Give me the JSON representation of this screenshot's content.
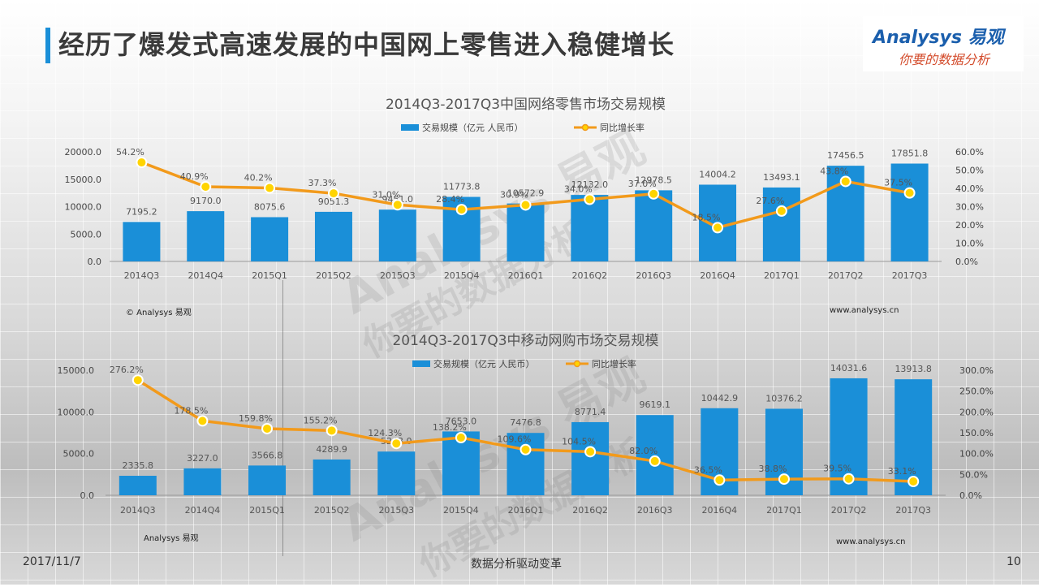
{
  "header": {
    "title": "经历了爆发式高速发展的中国网上零售进入稳健增长",
    "logo_brand": "Analysys 易观",
    "logo_tagline": "你要的数据分析"
  },
  "watermarks": [
    "Analysys 易观",
    "你要的数据分析"
  ],
  "footer": {
    "date": "2017/11/7",
    "center": "数据分析驱动变革",
    "page": "10"
  },
  "colors": {
    "bar": "#1a8fd8",
    "line": "#f29a1b",
    "marker_fill": "#ffd400",
    "accent": "#1a8fd8"
  },
  "chart_data": [
    {
      "type": "bar",
      "title": "2014Q3-2017Q3中国网络零售市场交易规模",
      "categories": [
        "2014Q3",
        "2014Q4",
        "2015Q1",
        "2015Q2",
        "2015Q3",
        "2015Q4",
        "2016Q1",
        "2016Q2",
        "2016Q3",
        "2016Q4",
        "2017Q1",
        "2017Q2",
        "2017Q3"
      ],
      "series": [
        {
          "name": "交易规模（亿元  人民币）",
          "kind": "bar",
          "axis": "left",
          "values": [
            7195.2,
            9170.0,
            8075.6,
            9051.3,
            9451.0,
            11773.8,
            10572.9,
            12132.0,
            12978.5,
            14004.2,
            13493.1,
            17456.5,
            17851.8
          ],
          "labels": [
            "7195.2",
            "9170.0",
            "8075.6",
            "9051.3",
            "9451.0",
            "11773.8",
            "10572.9",
            "12132.0",
            "12978.5",
            "14004.2",
            "13493.1",
            "17456.5",
            "17851.8"
          ]
        },
        {
          "name": "同比增长率",
          "kind": "line",
          "axis": "right",
          "values": [
            54.2,
            40.9,
            40.2,
            37.3,
            31.0,
            28.4,
            30.9,
            34.0,
            37.0,
            18.5,
            27.6,
            43.8,
            37.5
          ],
          "labels": [
            "54.2%",
            "40.9%",
            "40.2%",
            "37.3%",
            "31.0%",
            "28.4%",
            "30.9%",
            "34.0%",
            "37.0%",
            "18.5%",
            "27.6%",
            "43.8%",
            "37.5%"
          ]
        }
      ],
      "ylim": [
        0,
        20000
      ],
      "yticks": [
        "0.0",
        "5000.0",
        "10000.0",
        "15000.0",
        "20000.0"
      ],
      "y2lim": [
        0,
        60
      ],
      "y2ticks": [
        "0.0%",
        "10.0%",
        "20.0%",
        "30.0%",
        "40.0%",
        "50.0%",
        "60.0%"
      ],
      "source": "© Analysys 易观",
      "url": "www.analysys.cn",
      "legend": "top-center",
      "grid": false
    },
    {
      "type": "bar",
      "title": "2014Q3-2017Q3中移动网购市场交易规模",
      "categories": [
        "2014Q3",
        "2014Q4",
        "2015Q1",
        "2015Q2",
        "2015Q3",
        "2015Q4",
        "2016Q1",
        "2016Q2",
        "2016Q3",
        "2016Q4",
        "2017Q1",
        "2017Q2",
        "2017Q3"
      ],
      "series": [
        {
          "name": "交易规模（亿元 人民币）",
          "kind": "bar",
          "axis": "left",
          "values": [
            2335.8,
            3227.0,
            3566.8,
            4289.9,
            5243.0,
            7653.0,
            7476.8,
            8771.4,
            9619.1,
            10442.9,
            10376.2,
            14031.6,
            13913.8
          ],
          "labels": [
            "2335.8",
            "3227.0",
            "3566.8",
            "4289.9",
            "5243.0",
            "7653.0",
            "7476.8",
            "8771.4",
            "9619.1",
            "10442.9",
            "10376.2",
            "14031.6",
            "13913.8"
          ]
        },
        {
          "name": "同比增长率",
          "kind": "line",
          "axis": "right",
          "values": [
            276.2,
            178.5,
            159.8,
            155.2,
            124.3,
            138.2,
            109.6,
            104.5,
            82.0,
            36.5,
            38.8,
            39.5,
            33.1
          ],
          "labels": [
            "276.2%",
            "178.5%",
            "159.8%",
            "155.2%",
            "124.3%",
            "138.2%",
            "109.6%",
            "104.5%",
            "82.0%",
            "36.5%",
            "38.8%",
            "39.5%",
            "33.1%"
          ]
        }
      ],
      "ylim": [
        0,
        15000
      ],
      "yticks": [
        "0.0",
        "5000.0",
        "10000.0",
        "15000.0"
      ],
      "y2lim": [
        0,
        300
      ],
      "y2ticks": [
        "0.0%",
        "50.0%",
        "100.0%",
        "150.0%",
        "200.0%",
        "250.0%",
        "300.0%"
      ],
      "source": "Analysys 易观",
      "url": "www.analysys.cn",
      "legend": "top-center",
      "grid": false
    }
  ]
}
